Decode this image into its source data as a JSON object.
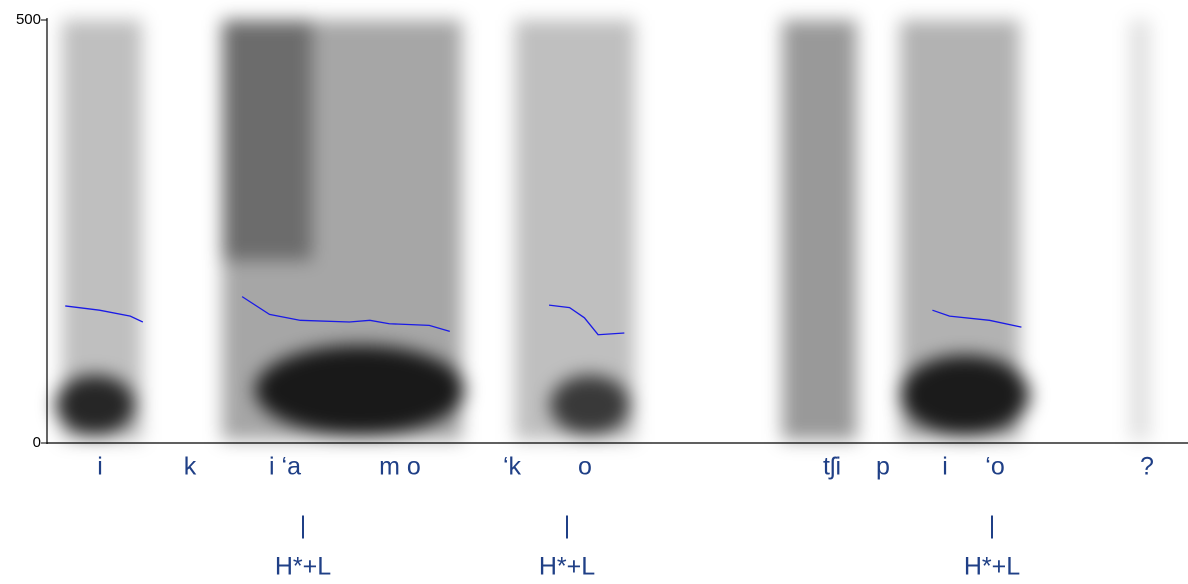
{
  "chart_data": {
    "type": "line",
    "ylim": [
      0,
      500
    ],
    "yticks": [
      0,
      500
    ],
    "xlim": [
      0,
      1
    ],
    "series": [
      {
        "color": "#1a1ae6",
        "x": [
          0.016,
          0.046,
          0.073,
          0.084,
          null,
          0.171,
          0.195,
          0.222,
          0.265,
          0.283,
          0.3,
          0.335,
          0.353,
          null,
          0.44,
          0.458,
          0.471,
          0.483,
          0.506,
          null,
          0.776,
          0.791,
          0.826,
          0.854
        ],
        "values": [
          162,
          157,
          150,
          143,
          null,
          173,
          152,
          145,
          143,
          145,
          141,
          139,
          132,
          null,
          163,
          160,
          148,
          128,
          130,
          null,
          157,
          150,
          145,
          137
        ]
      }
    ],
    "segments": [
      "i",
      "k",
      "i ‘a",
      "m o",
      "‘k",
      "o",
      "tʃi",
      "p",
      "i",
      "‘o",
      "?"
    ],
    "tones": [
      {
        "bar": "|",
        "label": "H*+L"
      },
      {
        "bar": "|",
        "label": "H*+L"
      },
      {
        "bar": "|",
        "label": "H*+L"
      }
    ]
  }
}
